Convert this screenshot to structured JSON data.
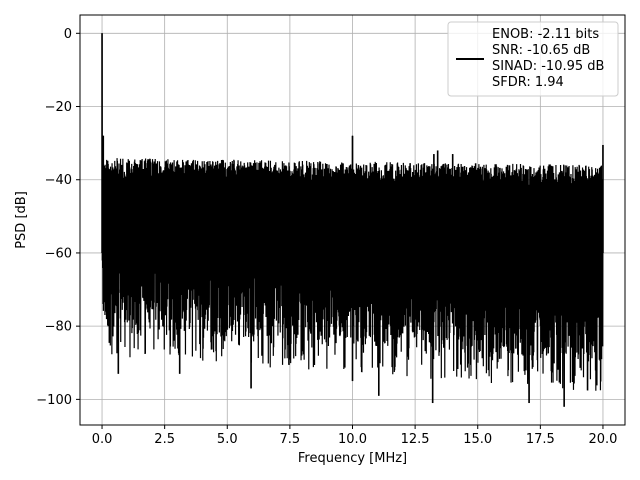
{
  "chart_data": {
    "type": "line",
    "title": "",
    "xlabel": "Frequency [MHz]",
    "ylabel": "PSD [dB]",
    "xlim": [
      -0.88,
      20.88
    ],
    "ylim": [
      -107,
      5
    ],
    "xticks": [
      0.0,
      2.5,
      5.0,
      7.5,
      10.0,
      12.5,
      15.0,
      17.5,
      20.0
    ],
    "xtick_labels": [
      "0.0",
      "2.5",
      "5.0",
      "7.5",
      "10.0",
      "12.5",
      "15.0",
      "17.5",
      "20.0"
    ],
    "yticks": [
      0,
      -20,
      -40,
      -60,
      -80,
      -100
    ],
    "ytick_labels": [
      "0",
      "−20",
      "−40",
      "−60",
      "−80",
      "−100"
    ],
    "grid": true,
    "legend_position": "top-right",
    "series": [
      {
        "name": "ENOB: -2.11 bits\nSNR: -10.65 dB\nSINAD: -10.95 dB\nSFDR: 1.94",
        "color": "#000000",
        "noise_floor": {
          "x_range": [
            0.0,
            20.0
          ],
          "upper_envelope_approx": [
            -34,
            -36
          ],
          "lower_envelope_approx": [
            -80,
            -90
          ]
        },
        "spikes": [
          {
            "x": 0.0,
            "y": 0
          },
          {
            "x": 0.05,
            "y": -28
          },
          {
            "x": 10.0,
            "y": -28
          },
          {
            "x": 13.25,
            "y": -33
          },
          {
            "x": 13.4,
            "y": -32
          },
          {
            "x": 14.0,
            "y": -33
          },
          {
            "x": 20.0,
            "y": -30.5
          }
        ],
        "dips": [
          {
            "x": 0.65,
            "y": -93
          },
          {
            "x": 3.1,
            "y": -93
          },
          {
            "x": 5.95,
            "y": -97
          },
          {
            "x": 10.0,
            "y": -95
          },
          {
            "x": 11.05,
            "y": -99
          },
          {
            "x": 13.2,
            "y": -101
          },
          {
            "x": 17.05,
            "y": -101
          },
          {
            "x": 18.45,
            "y": -102
          },
          {
            "x": 19.75,
            "y": -93
          }
        ]
      }
    ]
  }
}
